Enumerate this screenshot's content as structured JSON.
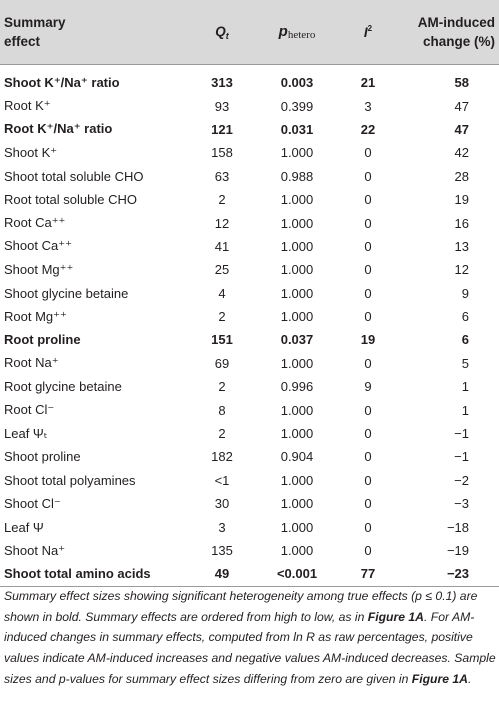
{
  "table": {
    "headers": {
      "effect_line1": "Summary",
      "effect_line2": "effect",
      "q_symbol": "Q",
      "q_sub": "t",
      "p_symbol": "p",
      "p_sub": "hetero",
      "i_symbol": "I",
      "i_sup": "2",
      "change_line1": "AM-induced",
      "change_line2": "change (%)"
    },
    "rows": [
      {
        "effect": "Shoot K⁺/Na⁺ ratio",
        "q": "313",
        "p": "0.003",
        "i2": "21",
        "change": "58",
        "bold": true
      },
      {
        "effect": "Root K⁺",
        "q": "93",
        "p": "0.399",
        "i2": "3",
        "change": "47",
        "bold": false
      },
      {
        "effect": "Root K⁺/Na⁺ ratio",
        "q": "121",
        "p": "0.031",
        "i2": "22",
        "change": "47",
        "bold": true
      },
      {
        "effect": "Shoot K⁺",
        "q": "158",
        "p": "1.000",
        "i2": "0",
        "change": "42",
        "bold": false
      },
      {
        "effect": "Shoot total soluble CHO",
        "q": "63",
        "p": "0.988",
        "i2": "0",
        "change": "28",
        "bold": false
      },
      {
        "effect": "Root total soluble CHO",
        "q": "2",
        "p": "1.000",
        "i2": "0",
        "change": "19",
        "bold": false
      },
      {
        "effect": "Root Ca⁺⁺",
        "q": "12",
        "p": "1.000",
        "i2": "0",
        "change": "16",
        "bold": false
      },
      {
        "effect": "Shoot Ca⁺⁺",
        "q": "41",
        "p": "1.000",
        "i2": "0",
        "change": "13",
        "bold": false
      },
      {
        "effect": "Shoot Mg⁺⁺",
        "q": "25",
        "p": "1.000",
        "i2": "0",
        "change": "12",
        "bold": false
      },
      {
        "effect": "Shoot glycine betaine",
        "q": "4",
        "p": "1.000",
        "i2": "0",
        "change": "9",
        "bold": false
      },
      {
        "effect": "Root Mg⁺⁺",
        "q": "2",
        "p": "1.000",
        "i2": "0",
        "change": "6",
        "bold": false
      },
      {
        "effect": "Root proline",
        "q": "151",
        "p": "0.037",
        "i2": "19",
        "change": "6",
        "bold": true
      },
      {
        "effect": "Root Na⁺",
        "q": "69",
        "p": "1.000",
        "i2": "0",
        "change": "5",
        "bold": false
      },
      {
        "effect": "Root glycine betaine",
        "q": "2",
        "p": "0.996",
        "i2": "9",
        "change": "1",
        "bold": false
      },
      {
        "effect": "Root Cl⁻",
        "q": "8",
        "p": "1.000",
        "i2": "0",
        "change": "1",
        "bold": false
      },
      {
        "effect": "Leaf Ψₜ",
        "q": "2",
        "p": "1.000",
        "i2": "0",
        "change": "−1",
        "bold": false
      },
      {
        "effect": "Shoot proline",
        "q": "182",
        "p": "0.904",
        "i2": "0",
        "change": "−1",
        "bold": false
      },
      {
        "effect": "Shoot total polyamines",
        "q": "<1",
        "p": "1.000",
        "i2": "0",
        "change": "−2",
        "bold": false
      },
      {
        "effect": "Shoot Cl⁻",
        "q": "30",
        "p": "1.000",
        "i2": "0",
        "change": "−3",
        "bold": false
      },
      {
        "effect": "Leaf Ψ",
        "q": "3",
        "p": "1.000",
        "i2": "0",
        "change": "−18",
        "bold": false
      },
      {
        "effect": "Shoot Na⁺",
        "q": "135",
        "p": "1.000",
        "i2": "0",
        "change": "−19",
        "bold": false
      },
      {
        "effect": "Shoot total amino acids",
        "q": "49",
        "p": "<0.001",
        "i2": "77",
        "change": "−23",
        "bold": true
      }
    ]
  },
  "caption": {
    "part1": "Summary effect sizes showing significant heterogeneity among true effects (p ≤ 0.1) are shown in bold. Summary effects are ordered from high to low, as in ",
    "ref1": "Figure 1A",
    "part2": ". For AM-induced changes in summary effects, computed from ln R as raw percentages, positive values indicate AM-induced increases and negative values AM-induced decreases. Sample sizes and p-values for summary effect sizes differing from zero are given in ",
    "ref2": "Figure 1A",
    "part3": "."
  },
  "colors": {
    "header_bg": "#d9d9d9",
    "text": "#231f20",
    "rule": "#9b9b9b"
  }
}
